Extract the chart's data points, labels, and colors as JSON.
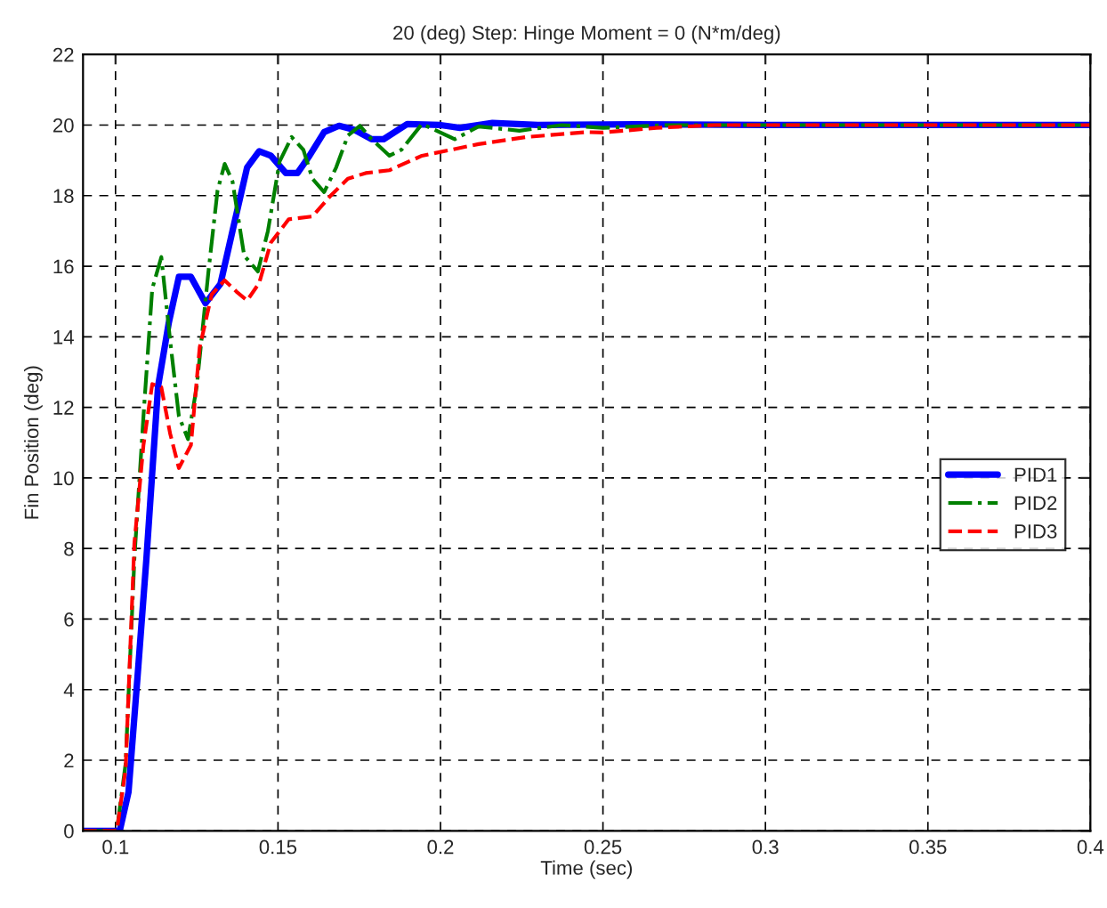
{
  "chart_data": {
    "type": "line",
    "title": "20 (deg) Step: Hinge Moment = 0 (N*m/deg)",
    "xlabel": "Time (sec)",
    "ylabel": "Fin Position (deg)",
    "xlim": [
      0.09,
      0.4
    ],
    "xticks": [
      0.1,
      0.15,
      0.2,
      0.25,
      0.3,
      0.35,
      0.4
    ],
    "ylim": [
      0,
      22
    ],
    "yticks": [
      0,
      2,
      4,
      6,
      8,
      10,
      12,
      14,
      16,
      18,
      20,
      22
    ],
    "grid": true,
    "legend": "right",
    "marker": "none",
    "series": [
      {
        "name": "PID1",
        "color": "#0000ff",
        "line_style": "solid",
        "x": [
          0.09,
          0.1013,
          0.104,
          0.1068,
          0.1095,
          0.1131,
          0.1164,
          0.1195,
          0.1232,
          0.1277,
          0.1323,
          0.136,
          0.1405,
          0.1442,
          0.1478,
          0.1524,
          0.156,
          0.1597,
          0.1642,
          0.1688,
          0.1734,
          0.1788,
          0.1825,
          0.1898,
          0.2,
          0.206,
          0.216,
          0.23,
          0.26,
          0.3,
          0.4
        ],
        "values": [
          0,
          0,
          1.1,
          4.4,
          7.7,
          12.6,
          14.4,
          15.7,
          15.7,
          14.95,
          15.5,
          17.0,
          18.8,
          19.26,
          19.13,
          18.64,
          18.64,
          19.13,
          19.8,
          19.98,
          19.87,
          19.6,
          19.6,
          20.03,
          20.0,
          19.92,
          20.06,
          20.0,
          20.02,
          20.0,
          20.0
        ]
      },
      {
        "name": "PID2",
        "color": "#008000",
        "line_style": "dashdot",
        "x": [
          0.09,
          0.1004,
          0.1031,
          0.1058,
          0.1086,
          0.1113,
          0.1141,
          0.1168,
          0.1195,
          0.1223,
          0.125,
          0.1286,
          0.1314,
          0.1336,
          0.136,
          0.1396,
          0.1438,
          0.1469,
          0.1505,
          0.1542,
          0.1578,
          0.1606,
          0.1642,
          0.1679,
          0.1715,
          0.1752,
          0.1788,
          0.1843,
          0.188,
          0.1943,
          0.2044,
          0.2117,
          0.2243,
          0.2373,
          0.25,
          0.27,
          0.4
        ],
        "values": [
          0,
          0,
          1.9,
          7.7,
          11.75,
          15.36,
          16.26,
          13.9,
          11.75,
          11.1,
          12.6,
          15.85,
          18.15,
          18.9,
          18.4,
          16.3,
          15.85,
          17.0,
          18.97,
          19.66,
          19.3,
          18.48,
          18.1,
          18.8,
          19.7,
          19.98,
          19.6,
          19.13,
          19.3,
          20.03,
          19.6,
          19.96,
          19.84,
          20.0,
          19.92,
          20.0,
          20.0
        ]
      },
      {
        "name": "PID3",
        "color": "#ff0000",
        "line_style": "dashed",
        "x": [
          0.09,
          0.1004,
          0.1031,
          0.1058,
          0.1086,
          0.1113,
          0.1141,
          0.1168,
          0.1195,
          0.1232,
          0.1259,
          0.1296,
          0.1336,
          0.1372,
          0.1405,
          0.1442,
          0.1478,
          0.1533,
          0.1606,
          0.166,
          0.1715,
          0.177,
          0.1843,
          0.1943,
          0.2117,
          0.2263,
          0.2446,
          0.25,
          0.2665,
          0.2845,
          0.4
        ],
        "values": [
          0,
          0,
          1.75,
          8.15,
          10.93,
          12.66,
          12.57,
          11.26,
          10.28,
          10.93,
          13.7,
          15.2,
          15.6,
          15.28,
          15.03,
          15.52,
          16.67,
          17.33,
          17.41,
          17.98,
          18.48,
          18.64,
          18.72,
          19.13,
          19.46,
          19.66,
          19.8,
          19.79,
          19.92,
          20.0,
          20.0
        ]
      }
    ]
  }
}
